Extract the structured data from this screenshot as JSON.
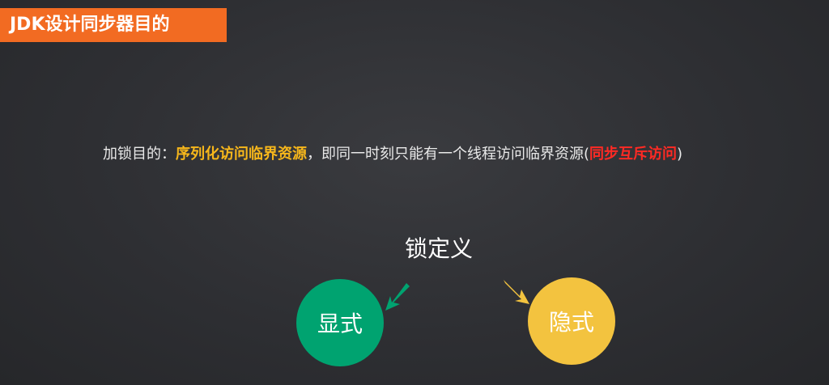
{
  "slide": {
    "title": "JDK设计同步器目的",
    "statement": {
      "prefix": "加锁目的：",
      "highlight_orange": "序列化访问临界资源",
      "middle": "，即同一时刻只能有一个线程访问临界资源(",
      "highlight_red": "同步互斥访问",
      "suffix": ")"
    },
    "diagram": {
      "title": "锁定义",
      "left_label": "显式",
      "right_label": "隐式"
    }
  },
  "colors": {
    "banner": "#f26b22",
    "orange_text": "#f7b71b",
    "red_text": "#ff2a24",
    "green_circle": "#00a370",
    "yellow_circle": "#f3c33f"
  },
  "icons": [
    "arrow-down-left-icon",
    "arrow-down-right-icon"
  ]
}
